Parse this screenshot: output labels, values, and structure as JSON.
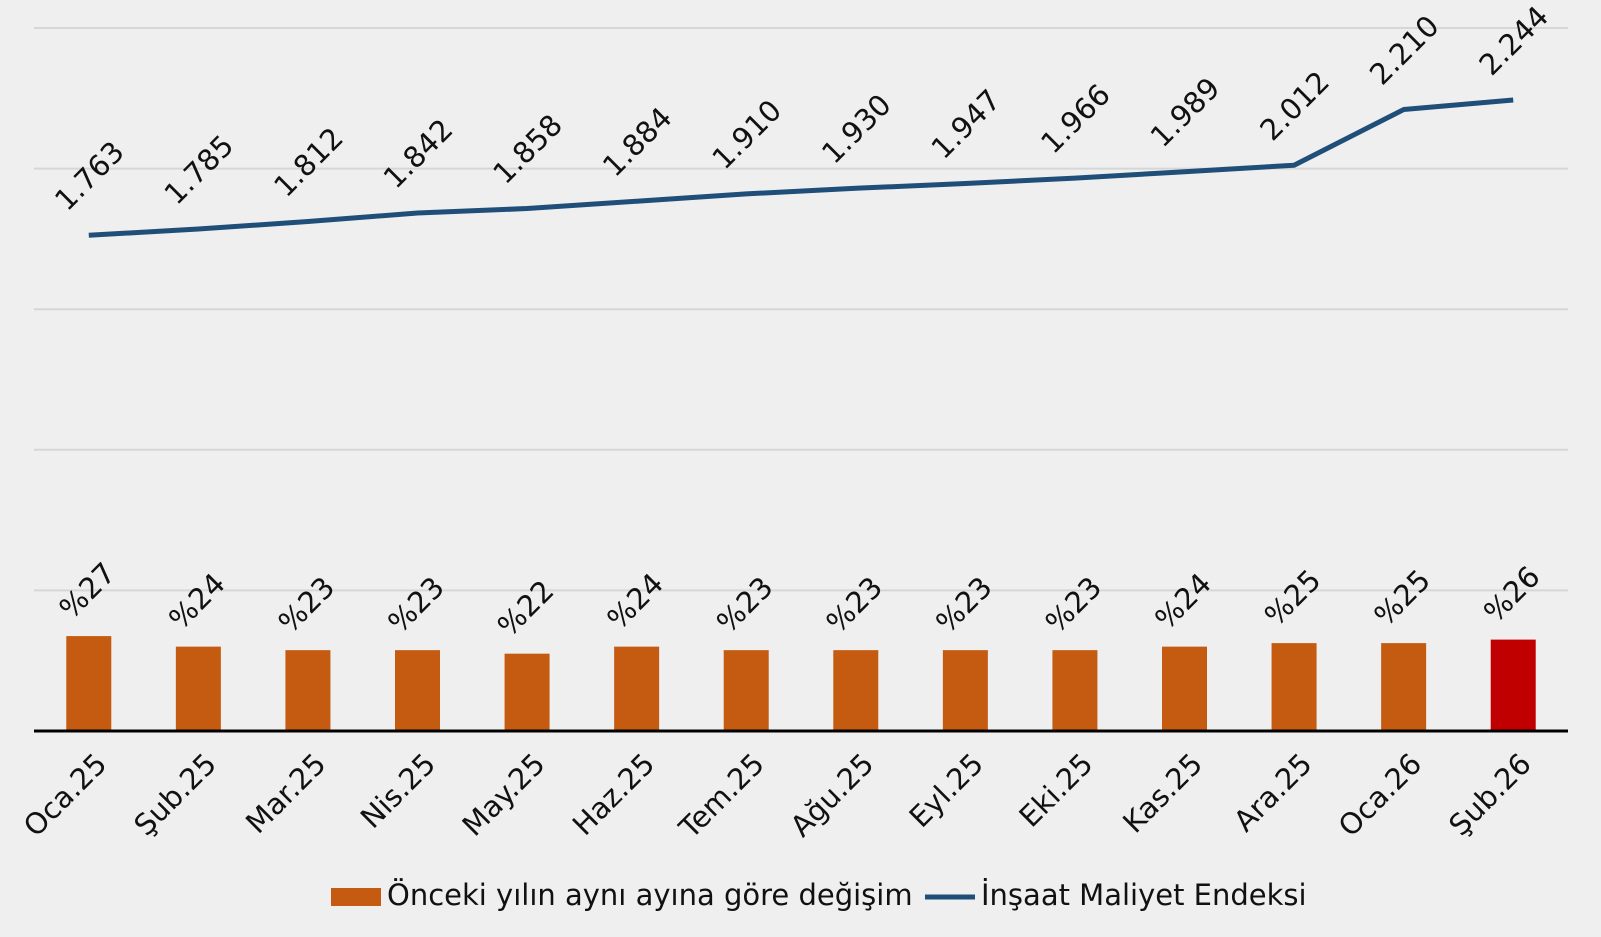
{
  "chart_data": {
    "type": "combo",
    "categories": [
      "Oca.25",
      "Şub.25",
      "Mar.25",
      "Nis.25",
      "May.25",
      "Haz.25",
      "Tem.25",
      "Ağu.25",
      "Eyl.25",
      "Eki.25",
      "Kas.25",
      "Ara.25",
      "Oca.26",
      "Şub.26"
    ],
    "series": [
      {
        "name": "Önceki yılın aynı ayına göre değişim",
        "type": "bar",
        "axis": "y",
        "color": "#c55a11",
        "colors": [
          "#c55a11",
          "#c55a11",
          "#c55a11",
          "#c55a11",
          "#c55a11",
          "#c55a11",
          "#c55a11",
          "#c55a11",
          "#c55a11",
          "#c55a11",
          "#c55a11",
          "#c55a11",
          "#c55a11",
          "#c00000"
        ],
        "values": [
          27,
          24,
          23,
          23,
          22,
          24,
          23,
          23,
          23,
          23,
          24,
          25,
          25,
          26
        ],
        "value_labels": [
          "%27",
          "%24",
          "%23",
          "%23",
          "%22",
          "%24",
          "%23",
          "%23",
          "%23",
          "%23",
          "%24",
          "%25",
          "%25",
          "%26"
        ]
      },
      {
        "name": "İnşaat Maliyet Endeksi",
        "type": "line",
        "axis": "y2",
        "color": "#1f4e79",
        "values": [
          1763,
          1785,
          1812,
          1842,
          1858,
          1884,
          1910,
          1930,
          1947,
          1966,
          1989,
          2012,
          2210,
          2244
        ],
        "value_labels": [
          "1.763",
          "1.785",
          "1.812",
          "1.842",
          "1.858",
          "1.884",
          "1.910",
          "1.930",
          "1.947",
          "1.966",
          "1.989",
          "2.012",
          "2.210",
          "2.244"
        ]
      }
    ],
    "ylim": [
      0,
      200
    ],
    "y2lim": [
      0,
      2500
    ],
    "y2ticks": [
      0,
      500,
      1000,
      1500,
      2000,
      2500
    ],
    "grid": true,
    "legend": "bottom"
  }
}
